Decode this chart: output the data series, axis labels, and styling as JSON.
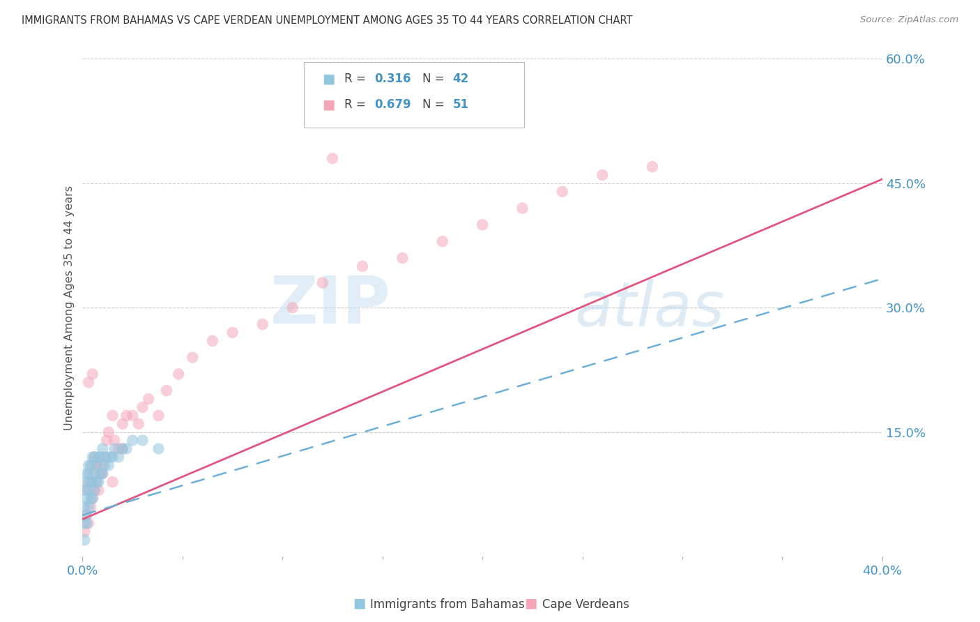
{
  "title": "IMMIGRANTS FROM BAHAMAS VS CAPE VERDEAN UNEMPLOYMENT AMONG AGES 35 TO 44 YEARS CORRELATION CHART",
  "source": "Source: ZipAtlas.com",
  "ylabel": "Unemployment Among Ages 35 to 44 years",
  "xlim": [
    0.0,
    0.4
  ],
  "ylim": [
    0.0,
    0.6
  ],
  "yticks_right": [
    0.0,
    0.15,
    0.3,
    0.45,
    0.6
  ],
  "yticklabels_right": [
    "",
    "15.0%",
    "30.0%",
    "45.0%",
    "60.0%"
  ],
  "grid_yticks": [
    0.15,
    0.3,
    0.45,
    0.6
  ],
  "watermark_zip": "ZIP",
  "watermark_atlas": "atlas",
  "color_blue": "#92c5de",
  "color_pink": "#f4a6b8",
  "color_line_blue": "#6baed6",
  "color_line_pink": "#e05580",
  "legend_label1": "Immigrants from Bahamas",
  "legend_label2": "Cape Verdeans",
  "line_pink_x0": 0.0,
  "line_pink_y0": 0.045,
  "line_pink_x1": 0.4,
  "line_pink_y1": 0.455,
  "line_blue_x0": 0.0,
  "line_blue_y0": 0.05,
  "line_blue_x1": 0.4,
  "line_blue_y1": 0.335,
  "bahamas_x": [
    0.001,
    0.001,
    0.001,
    0.002,
    0.002,
    0.002,
    0.002,
    0.003,
    0.003,
    0.003,
    0.003,
    0.004,
    0.004,
    0.004,
    0.005,
    0.005,
    0.005,
    0.006,
    0.006,
    0.006,
    0.007,
    0.007,
    0.008,
    0.008,
    0.009,
    0.009,
    0.01,
    0.01,
    0.011,
    0.012,
    0.013,
    0.014,
    0.015,
    0.016,
    0.018,
    0.02,
    0.022,
    0.025,
    0.03,
    0.038,
    0.001,
    0.002
  ],
  "bahamas_y": [
    0.04,
    0.06,
    0.08,
    0.05,
    0.07,
    0.09,
    0.1,
    0.06,
    0.08,
    0.1,
    0.11,
    0.07,
    0.09,
    0.11,
    0.07,
    0.09,
    0.12,
    0.08,
    0.1,
    0.12,
    0.09,
    0.11,
    0.09,
    0.12,
    0.1,
    0.12,
    0.1,
    0.13,
    0.11,
    0.12,
    0.11,
    0.12,
    0.12,
    0.13,
    0.12,
    0.13,
    0.13,
    0.14,
    0.14,
    0.13,
    0.02,
    0.04
  ],
  "capeverde_x": [
    0.001,
    0.002,
    0.002,
    0.003,
    0.003,
    0.004,
    0.004,
    0.005,
    0.005,
    0.006,
    0.006,
    0.007,
    0.008,
    0.009,
    0.01,
    0.011,
    0.012,
    0.013,
    0.015,
    0.016,
    0.018,
    0.02,
    0.022,
    0.025,
    0.028,
    0.03,
    0.033,
    0.038,
    0.042,
    0.048,
    0.055,
    0.065,
    0.075,
    0.09,
    0.105,
    0.12,
    0.14,
    0.16,
    0.18,
    0.2,
    0.22,
    0.24,
    0.26,
    0.285,
    0.003,
    0.005,
    0.007,
    0.01,
    0.015,
    0.02,
    0.125
  ],
  "capeverde_y": [
    0.03,
    0.05,
    0.08,
    0.04,
    0.09,
    0.06,
    0.1,
    0.07,
    0.11,
    0.08,
    0.12,
    0.09,
    0.08,
    0.1,
    0.11,
    0.12,
    0.14,
    0.15,
    0.17,
    0.14,
    0.13,
    0.16,
    0.17,
    0.17,
    0.16,
    0.18,
    0.19,
    0.17,
    0.2,
    0.22,
    0.24,
    0.26,
    0.27,
    0.28,
    0.3,
    0.33,
    0.35,
    0.36,
    0.38,
    0.4,
    0.42,
    0.44,
    0.46,
    0.47,
    0.21,
    0.22,
    0.11,
    0.1,
    0.09,
    0.13,
    0.48
  ]
}
